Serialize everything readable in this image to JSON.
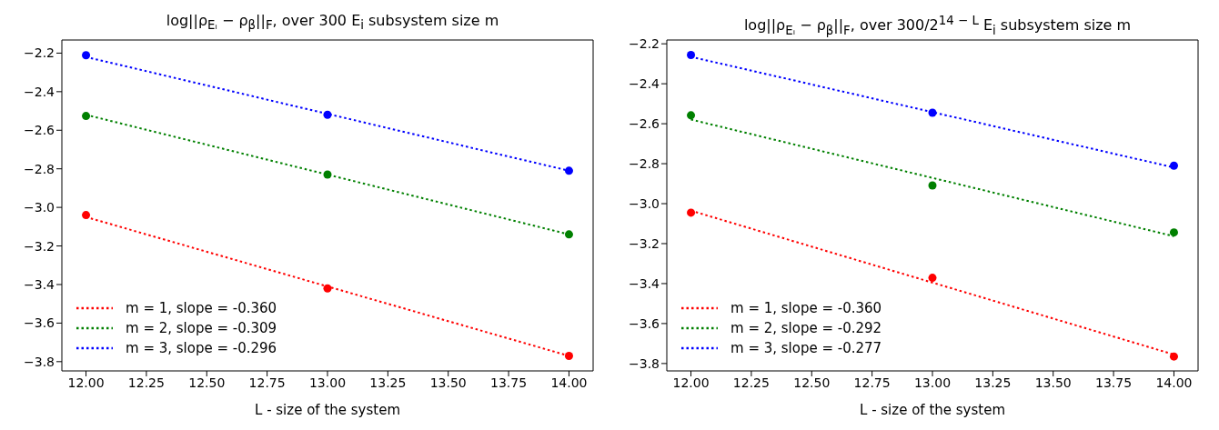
{
  "chart_data": [
    {
      "type": "line",
      "title": "log||ρ$_{Eᵢ}$ − ρ$_{β}$||$_{F}$,  over 300 E$_{i}$ subsystem size m",
      "xlabel": "L - size of the system",
      "xlim": [
        11.9,
        14.1
      ],
      "ylim": [
        -3.848,
        -2.132
      ],
      "xticks": [
        {
          "value": 12,
          "label": "12.00"
        },
        {
          "value": 12.25,
          "label": "12.25"
        },
        {
          "value": 12.5,
          "label": "12.50"
        },
        {
          "value": 12.75,
          "label": "12.75"
        },
        {
          "value": 13,
          "label": "13.00"
        },
        {
          "value": 13.25,
          "label": "13.25"
        },
        {
          "value": 13.5,
          "label": "13.50"
        },
        {
          "value": 13.75,
          "label": "13.75"
        },
        {
          "value": 14,
          "label": "14.00"
        }
      ],
      "yticks": [
        {
          "value": -3.8,
          "label": "−3.8"
        },
        {
          "value": -3.6,
          "label": "−3.6"
        },
        {
          "value": -3.4,
          "label": "−3.4"
        },
        {
          "value": -3.2,
          "label": "−3.2"
        },
        {
          "value": -3.0,
          "label": "−3.0"
        },
        {
          "value": -2.8,
          "label": "−2.8"
        },
        {
          "value": -2.6,
          "label": "−2.6"
        },
        {
          "value": -2.4,
          "label": "−2.4"
        },
        {
          "value": -2.2,
          "label": "−2.2"
        }
      ],
      "grid": false,
      "legend": "bottom left",
      "series": [
        {
          "type": "line",
          "name": "m = 1,  slope = -0.360",
          "color": "#ff0000",
          "x": [
            12,
            14
          ],
          "values": [
            -3.05,
            -3.77
          ],
          "line_style": "dotted",
          "marker": "none"
        },
        {
          "type": "line",
          "name": "m = 2,  slope = -0.309",
          "color": "#008000",
          "x": [
            12,
            14
          ],
          "values": [
            -2.52,
            -3.14
          ],
          "line_style": "dotted",
          "marker": "none"
        },
        {
          "type": "line",
          "name": "m = 3,  slope = -0.296",
          "color": "#0000ff",
          "x": [
            12,
            14
          ],
          "values": [
            -2.22,
            -2.81
          ],
          "line_style": "dotted",
          "marker": "none"
        },
        {
          "type": "scatter",
          "color": "#ff0000",
          "x": [
            12,
            13,
            14
          ],
          "values": [
            -3.04,
            -3.42,
            -3.77
          ],
          "marker": "circle"
        },
        {
          "type": "scatter",
          "color": "#008000",
          "x": [
            12,
            13,
            14
          ],
          "values": [
            -2.526,
            -2.83,
            -3.14
          ],
          "marker": "circle"
        },
        {
          "type": "scatter",
          "color": "#0000ff",
          "x": [
            12,
            13,
            14
          ],
          "values": [
            -2.211,
            -2.52,
            -2.81
          ],
          "marker": "circle"
        }
      ]
    },
    {
      "type": "line",
      "title": "log||ρ$_{Eᵢ}$ − ρ$_{β}$||$_{F}$,  over 300/2$^{14 − L}$ E$_{i}$ subsystem size m",
      "xlabel": "L - size of the system",
      "xlim": [
        11.9,
        14.1
      ],
      "ylim": [
        -3.837,
        -2.181
      ],
      "xticks": [
        {
          "value": 12,
          "label": "12.00"
        },
        {
          "value": 12.25,
          "label": "12.25"
        },
        {
          "value": 12.5,
          "label": "12.50"
        },
        {
          "value": 12.75,
          "label": "12.75"
        },
        {
          "value": 13,
          "label": "13.00"
        },
        {
          "value": 13.25,
          "label": "13.25"
        },
        {
          "value": 13.5,
          "label": "13.50"
        },
        {
          "value": 13.75,
          "label": "13.75"
        },
        {
          "value": 14,
          "label": "14.00"
        }
      ],
      "yticks": [
        {
          "value": -3.8,
          "label": "−3.8"
        },
        {
          "value": -3.6,
          "label": "−3.6"
        },
        {
          "value": -3.4,
          "label": "−3.4"
        },
        {
          "value": -3.2,
          "label": "−3.2"
        },
        {
          "value": -3.0,
          "label": "−3.0"
        },
        {
          "value": -2.8,
          "label": "−2.8"
        },
        {
          "value": -2.6,
          "label": "−2.6"
        },
        {
          "value": -2.4,
          "label": "−2.4"
        },
        {
          "value": -2.2,
          "label": "−2.2"
        }
      ],
      "grid": false,
      "legend": "bottom left",
      "series": [
        {
          "type": "line",
          "name": "m = 1,  slope = -0.360",
          "color": "#ff0000",
          "x": [
            12,
            14
          ],
          "values": [
            -3.035,
            -3.755
          ],
          "line_style": "dotted",
          "marker": "none"
        },
        {
          "type": "line",
          "name": "m = 2,  slope = -0.292",
          "color": "#008000",
          "x": [
            12,
            14
          ],
          "values": [
            -2.579,
            -3.163
          ],
          "line_style": "dotted",
          "marker": "none"
        },
        {
          "type": "line",
          "name": "m = 3,  slope = -0.277",
          "color": "#0000ff",
          "x": [
            12,
            14
          ],
          "values": [
            -2.265,
            -2.819
          ],
          "line_style": "dotted",
          "marker": "none"
        },
        {
          "type": "scatter",
          "color": "#ff0000",
          "x": [
            12,
            13,
            14
          ],
          "values": [
            -3.045,
            -3.371,
            -3.765
          ],
          "marker": "circle"
        },
        {
          "type": "scatter",
          "color": "#008000",
          "x": [
            12,
            13,
            14
          ],
          "values": [
            -2.558,
            -2.909,
            -3.144
          ],
          "marker": "circle"
        },
        {
          "type": "scatter",
          "color": "#0000ff",
          "x": [
            12,
            13,
            14
          ],
          "values": [
            -2.256,
            -2.545,
            -2.81
          ],
          "marker": "circle"
        }
      ]
    }
  ]
}
